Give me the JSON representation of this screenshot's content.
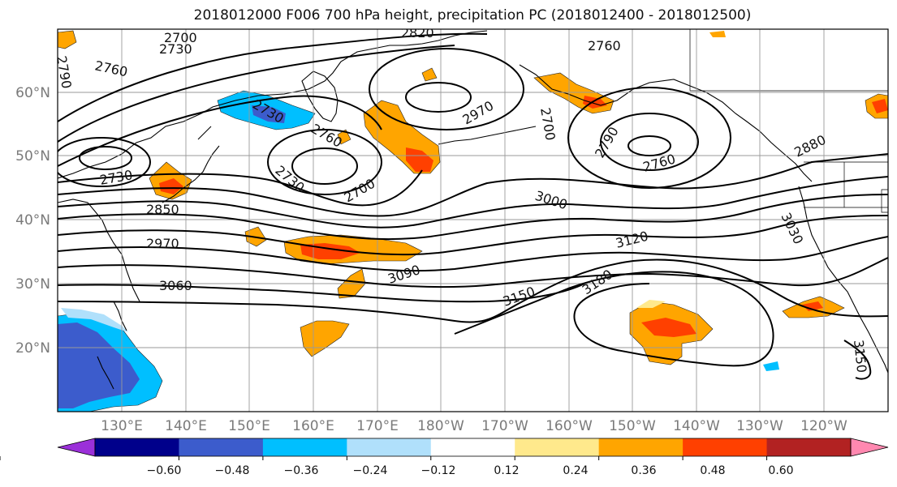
{
  "title": "2018012000 F006 700 hPa height, precipitation PC (2018012400 - 2018012500)",
  "latitude_labels": [
    "60°N",
    "50°N",
    "40°N",
    "30°N",
    "20°N"
  ],
  "longitude_labels": [
    "130°E",
    "140°E",
    "150°E",
    "160°E",
    "170°E",
    "180°W",
    "170°W",
    "160°W",
    "150°W",
    "140°W",
    "130°W",
    "120°W"
  ],
  "contour_labels": [
    "2700",
    "2730",
    "2760",
    "2790",
    "2820",
    "2760",
    "2730",
    "2730",
    "2850",
    "2970",
    "3060",
    "2760",
    "2730",
    "2700",
    "2970",
    "3000",
    "3090",
    "3120",
    "3150",
    "3180",
    "2790",
    "2760",
    "2880",
    "3030",
    "3150",
    "2700"
  ],
  "colorbar": {
    "tick_labels": [
      "−0.60",
      "−0.48",
      "−0.36",
      "−0.24",
      "−0.12",
      "0.12",
      "0.24",
      "0.36",
      "0.48",
      "0.60"
    ],
    "colors": [
      "#9b30d9",
      "#00008b",
      "#3c5ccc",
      "#00bfff",
      "#b0e0fb",
      "#ffffff",
      "#ffe98c",
      "#ffa500",
      "#ff4000",
      "#b22222",
      "#ff88b0"
    ]
  },
  "colors": {
    "positive_light": "#ffe98c",
    "positive": "#ffa500",
    "positive_strong": "#ff4000",
    "negative_light": "#b0e0fb",
    "negative": "#00bfff",
    "negative_strong": "#3c5ccc",
    "contour": "#000000",
    "grid": "#9a9a9a"
  }
}
